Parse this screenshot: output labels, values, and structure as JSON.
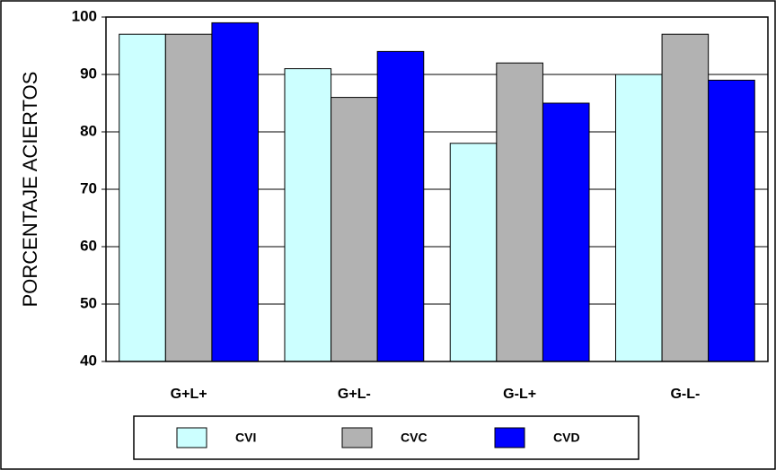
{
  "chart_data": {
    "type": "bar",
    "y_label": "PORCENTAJE ACIERTOS",
    "categories": [
      "G+L+",
      "G+L-",
      "G-L+",
      "G-L-"
    ],
    "series": [
      {
        "name": "CVI",
        "color": "#ccffff",
        "values": [
          97,
          91,
          78,
          90
        ]
      },
      {
        "name": "CVC",
        "color": "#b2b2b2",
        "values": [
          97,
          86,
          92,
          97
        ]
      },
      {
        "name": "CVD",
        "color": "#0000ff",
        "values": [
          99,
          94,
          85,
          89
        ]
      }
    ],
    "ylim": [
      40,
      100
    ],
    "yticks": [
      40,
      50,
      60,
      70,
      80,
      90,
      100
    ],
    "grid": true
  }
}
